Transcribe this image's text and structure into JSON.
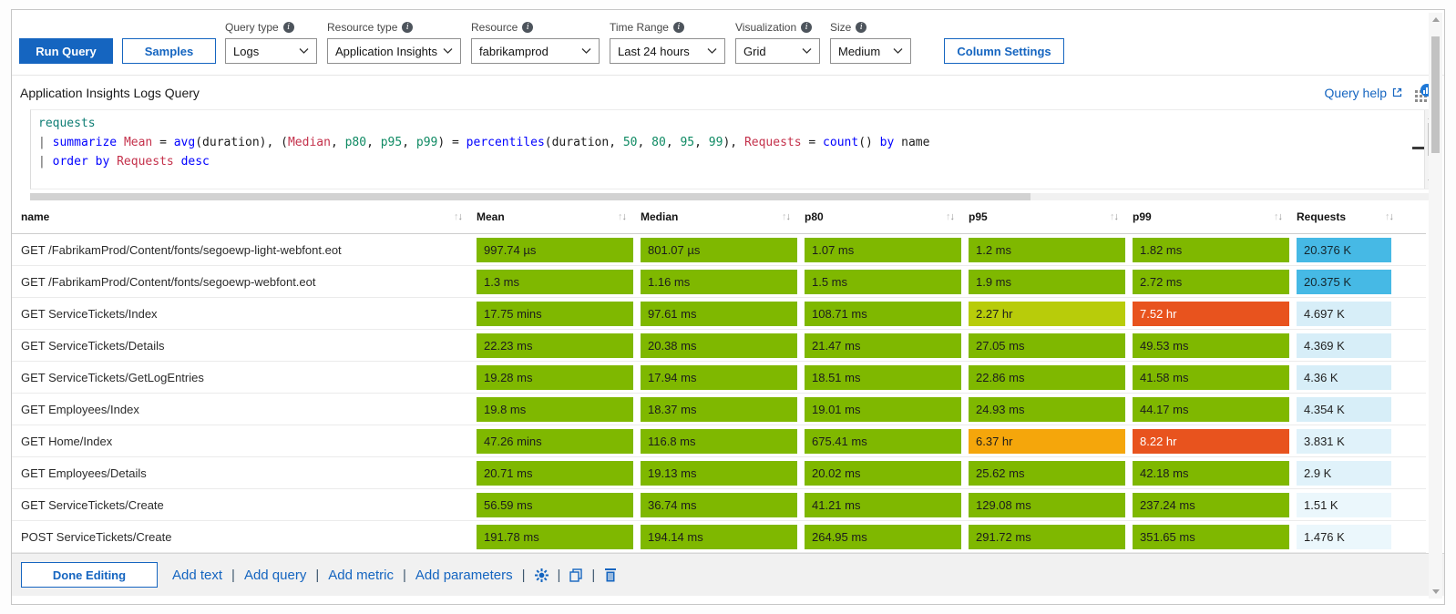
{
  "colors": {
    "accent": "#1565c0",
    "green": "#7fb800",
    "lime": "#b8cc0a",
    "amber": "#f5a60b",
    "red": "#e8531e",
    "cyan": "#46b9e5"
  },
  "toolbar": {
    "run_query_label": "Run Query",
    "samples_label": "Samples",
    "column_settings_label": "Column Settings",
    "info_glyph": "i",
    "fields": [
      {
        "key": "query_type",
        "label": "Query type",
        "value": "Logs"
      },
      {
        "key": "resource_type",
        "label": "Resource type",
        "value": "Application Insights"
      },
      {
        "key": "resource",
        "label": "Resource",
        "value": "fabrikamprod"
      },
      {
        "key": "time_range",
        "label": "Time Range",
        "value": "Last 24 hours"
      },
      {
        "key": "visualization",
        "label": "Visualization",
        "value": "Grid"
      },
      {
        "key": "size",
        "label": "Size",
        "value": "Medium"
      }
    ]
  },
  "query": {
    "title": "Application Insights Logs Query",
    "help_label": "Query help",
    "lines": [
      [
        {
          "t": "requests",
          "c": "tbl"
        }
      ],
      [
        {
          "t": "| ",
          "c": "pipe"
        },
        {
          "t": "summarize",
          "c": "kw"
        },
        {
          "t": " ",
          "c": "pln"
        },
        {
          "t": "Mean",
          "c": "col"
        },
        {
          "t": " = ",
          "c": "pln"
        },
        {
          "t": "avg",
          "c": "fn"
        },
        {
          "t": "(duration), (",
          "c": "pln"
        },
        {
          "t": "Median",
          "c": "col"
        },
        {
          "t": ", ",
          "c": "pln"
        },
        {
          "t": "p80",
          "c": "num"
        },
        {
          "t": ", ",
          "c": "pln"
        },
        {
          "t": "p95",
          "c": "num"
        },
        {
          "t": ", ",
          "c": "pln"
        },
        {
          "t": "p99",
          "c": "num"
        },
        {
          "t": ") = ",
          "c": "pln"
        },
        {
          "t": "percentiles",
          "c": "fn"
        },
        {
          "t": "(duration, ",
          "c": "pln"
        },
        {
          "t": "50",
          "c": "num"
        },
        {
          "t": ", ",
          "c": "pln"
        },
        {
          "t": "80",
          "c": "num"
        },
        {
          "t": ", ",
          "c": "pln"
        },
        {
          "t": "95",
          "c": "num"
        },
        {
          "t": ", ",
          "c": "pln"
        },
        {
          "t": "99",
          "c": "num"
        },
        {
          "t": "), ",
          "c": "pln"
        },
        {
          "t": "Requests",
          "c": "col"
        },
        {
          "t": " = ",
          "c": "pln"
        },
        {
          "t": "count",
          "c": "fn"
        },
        {
          "t": "() ",
          "c": "pln"
        },
        {
          "t": "by",
          "c": "kw"
        },
        {
          "t": " name",
          "c": "pln"
        }
      ],
      [
        {
          "t": "| ",
          "c": "pipe"
        },
        {
          "t": "order",
          "c": "kw"
        },
        {
          "t": " ",
          "c": "pln"
        },
        {
          "t": "by",
          "c": "kw"
        },
        {
          "t": " ",
          "c": "pln"
        },
        {
          "t": "Requests",
          "c": "col"
        },
        {
          "t": " ",
          "c": "pln"
        },
        {
          "t": "desc",
          "c": "kw"
        }
      ]
    ]
  },
  "table": {
    "columns": [
      "name",
      "Mean",
      "Median",
      "p80",
      "p95",
      "p99",
      "Requests"
    ],
    "sort_icons": {
      "asc": "↑",
      "desc": "↓"
    },
    "palette": {
      "green": {
        "bg": "#7fb800",
        "fg": "#1c1c1c"
      },
      "lime": {
        "bg": "#b8cc0a",
        "fg": "#1c1c1c"
      },
      "amber": {
        "bg": "#f5a60b",
        "fg": "#1c1c1c"
      },
      "red": {
        "bg": "#e8531e",
        "fg": "#ffffff"
      },
      "reqStrong": {
        "bg": "#46b9e5",
        "fg": "#15272e"
      },
      "req1": {
        "bg": "#d7eef8",
        "fg": "#222222"
      },
      "req2": {
        "bg": "#e0f2fa",
        "fg": "#222222"
      },
      "req3": {
        "bg": "#ebf7fc",
        "fg": "#222222"
      }
    },
    "rows": [
      {
        "name": "GET /FabrikamProd/Content/fonts/segoewp-light-webfont.eot",
        "cells": [
          {
            "v": "997.74 µs",
            "c": "green"
          },
          {
            "v": "801.07 µs",
            "c": "green"
          },
          {
            "v": "1.07 ms",
            "c": "green"
          },
          {
            "v": "1.2 ms",
            "c": "green"
          },
          {
            "v": "1.82 ms",
            "c": "green"
          },
          {
            "v": "20.376 K",
            "c": "reqStrong"
          }
        ]
      },
      {
        "name": "GET /FabrikamProd/Content/fonts/segoewp-webfont.eot",
        "cells": [
          {
            "v": "1.3 ms",
            "c": "green"
          },
          {
            "v": "1.16 ms",
            "c": "green"
          },
          {
            "v": "1.5 ms",
            "c": "green"
          },
          {
            "v": "1.9 ms",
            "c": "green"
          },
          {
            "v": "2.72 ms",
            "c": "green"
          },
          {
            "v": "20.375 K",
            "c": "reqStrong"
          }
        ]
      },
      {
        "name": "GET ServiceTickets/Index",
        "cells": [
          {
            "v": "17.75 mins",
            "c": "green"
          },
          {
            "v": "97.61 ms",
            "c": "green"
          },
          {
            "v": "108.71 ms",
            "c": "green"
          },
          {
            "v": "2.27 hr",
            "c": "lime"
          },
          {
            "v": "7.52 hr",
            "c": "red"
          },
          {
            "v": "4.697 K",
            "c": "req1"
          }
        ]
      },
      {
        "name": "GET ServiceTickets/Details",
        "cells": [
          {
            "v": "22.23 ms",
            "c": "green"
          },
          {
            "v": "20.38 ms",
            "c": "green"
          },
          {
            "v": "21.47 ms",
            "c": "green"
          },
          {
            "v": "27.05 ms",
            "c": "green"
          },
          {
            "v": "49.53 ms",
            "c": "green"
          },
          {
            "v": "4.369 K",
            "c": "req1"
          }
        ]
      },
      {
        "name": "GET ServiceTickets/GetLogEntries",
        "cells": [
          {
            "v": "19.28 ms",
            "c": "green"
          },
          {
            "v": "17.94 ms",
            "c": "green"
          },
          {
            "v": "18.51 ms",
            "c": "green"
          },
          {
            "v": "22.86 ms",
            "c": "green"
          },
          {
            "v": "41.58 ms",
            "c": "green"
          },
          {
            "v": "4.36 K",
            "c": "req1"
          }
        ]
      },
      {
        "name": "GET Employees/Index",
        "cells": [
          {
            "v": "19.8 ms",
            "c": "green"
          },
          {
            "v": "18.37 ms",
            "c": "green"
          },
          {
            "v": "19.01 ms",
            "c": "green"
          },
          {
            "v": "24.93 ms",
            "c": "green"
          },
          {
            "v": "44.17 ms",
            "c": "green"
          },
          {
            "v": "4.354 K",
            "c": "req1"
          }
        ]
      },
      {
        "name": "GET Home/Index",
        "cells": [
          {
            "v": "47.26 mins",
            "c": "green"
          },
          {
            "v": "116.8 ms",
            "c": "green"
          },
          {
            "v": "675.41 ms",
            "c": "green"
          },
          {
            "v": "6.37 hr",
            "c": "amber"
          },
          {
            "v": "8.22 hr",
            "c": "red"
          },
          {
            "v": "3.831 K",
            "c": "req2"
          }
        ]
      },
      {
        "name": "GET Employees/Details",
        "cells": [
          {
            "v": "20.71 ms",
            "c": "green"
          },
          {
            "v": "19.13 ms",
            "c": "green"
          },
          {
            "v": "20.02 ms",
            "c": "green"
          },
          {
            "v": "25.62 ms",
            "c": "green"
          },
          {
            "v": "42.18 ms",
            "c": "green"
          },
          {
            "v": "2.9 K",
            "c": "req2"
          }
        ]
      },
      {
        "name": "GET ServiceTickets/Create",
        "cells": [
          {
            "v": "56.59 ms",
            "c": "green"
          },
          {
            "v": "36.74 ms",
            "c": "green"
          },
          {
            "v": "41.21 ms",
            "c": "green"
          },
          {
            "v": "129.08 ms",
            "c": "green"
          },
          {
            "v": "237.24 ms",
            "c": "green"
          },
          {
            "v": "1.51 K",
            "c": "req3"
          }
        ]
      },
      {
        "name": "POST ServiceTickets/Create",
        "cells": [
          {
            "v": "191.78 ms",
            "c": "green"
          },
          {
            "v": "194.14 ms",
            "c": "green"
          },
          {
            "v": "264.95 ms",
            "c": "green"
          },
          {
            "v": "291.72 ms",
            "c": "green"
          },
          {
            "v": "351.65 ms",
            "c": "green"
          },
          {
            "v": "1.476 K",
            "c": "req3"
          }
        ]
      }
    ]
  },
  "footer": {
    "done_label": "Done Editing",
    "separator": "|",
    "items": [
      {
        "type": "link",
        "label": "Add text"
      },
      {
        "type": "link",
        "label": "Add query"
      },
      {
        "type": "link",
        "label": "Add metric"
      },
      {
        "type": "link",
        "label": "Add parameters"
      },
      {
        "type": "icon",
        "name": "gear-icon"
      },
      {
        "type": "icon",
        "name": "copy-icon"
      },
      {
        "type": "icon",
        "name": "trash-icon"
      }
    ]
  }
}
